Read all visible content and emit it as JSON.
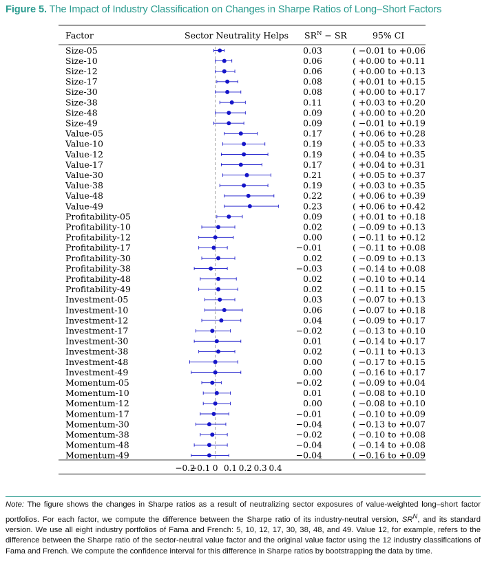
{
  "figure": {
    "label": "Figure 5.",
    "title": "The Impact of Industry Classification on Changes in Sharpe Ratios of Long–Short Factors"
  },
  "note": {
    "lead": "Note:",
    "part1": " The figure shows the changes in Sharpe ratios as a result of neutralizing sector exposures of value-weighted long–short factor portfolios. For each factor, we compute the difference between the Sharpe ratio of its industry-neutral version, ",
    "sym": "SR",
    "sym_sup": "N",
    "part2": ", and its standard version. We use all eight industry portfolios of Fama and French: 5, 10, 12, 17, 30, 38, 48, and 49. Value 12, for example, refers to the difference between the Sharpe ratio of the sector-neutral value factor and the original value factor using the 12 industry classifications of Fama and French. We compute the confidence interval for this difference in Sharpe ratios by bootstrapping the data by time."
  },
  "colors": {
    "accent": "#2a9b8f",
    "point": "#1515c8",
    "ci": "#1a1acb"
  },
  "chart_data": {
    "type": "scatter",
    "orientation": "horizontal-forest",
    "columns": {
      "factor": "Factor",
      "plot": "Sector Neutrality Helps",
      "diff_main": "SR",
      "diff_sup": "N",
      "diff_tail": " − SR",
      "ci": "95% CI"
    },
    "xlim": [
      -0.2,
      0.4
    ],
    "xticks": [
      "−0.2",
      "−0.1",
      "0",
      "0.1",
      "0.2",
      "0.3",
      "0.4"
    ],
    "xtick_values": [
      -0.2,
      -0.1,
      0,
      0.1,
      0.2,
      0.3,
      0.4
    ],
    "reference_line": 0,
    "rows": [
      {
        "factor": "Size-05",
        "diff": 0.03,
        "lo": -0.01,
        "hi": 0.06,
        "diff_label": "0.03",
        "ci_label": "( −0.01 to +0.06)"
      },
      {
        "factor": "Size-10",
        "diff": 0.06,
        "lo": 0.0,
        "hi": 0.11,
        "diff_label": "0.06",
        "ci_label": "( +0.00 to +0.11)"
      },
      {
        "factor": "Size-12",
        "diff": 0.06,
        "lo": 0.0,
        "hi": 0.13,
        "diff_label": "0.06",
        "ci_label": "( +0.00 to +0.13)"
      },
      {
        "factor": "Size-17",
        "diff": 0.08,
        "lo": 0.01,
        "hi": 0.15,
        "diff_label": "0.08",
        "ci_label": "( +0.01 to +0.15)"
      },
      {
        "factor": "Size-30",
        "diff": 0.08,
        "lo": 0.0,
        "hi": 0.17,
        "diff_label": "0.08",
        "ci_label": "( +0.00 to +0.17)"
      },
      {
        "factor": "Size-38",
        "diff": 0.11,
        "lo": 0.03,
        "hi": 0.2,
        "diff_label": "0.11",
        "ci_label": "( +0.03 to +0.20)"
      },
      {
        "factor": "Size-48",
        "diff": 0.09,
        "lo": 0.0,
        "hi": 0.2,
        "diff_label": "0.09",
        "ci_label": "( +0.00 to +0.20)"
      },
      {
        "factor": "Size-49",
        "diff": 0.09,
        "lo": -0.01,
        "hi": 0.19,
        "diff_label": "0.09",
        "ci_label": "( −0.01 to +0.19)"
      },
      {
        "factor": "Value-05",
        "diff": 0.17,
        "lo": 0.06,
        "hi": 0.28,
        "diff_label": "0.17",
        "ci_label": "( +0.06 to +0.28)"
      },
      {
        "factor": "Value-10",
        "diff": 0.19,
        "lo": 0.05,
        "hi": 0.33,
        "diff_label": "0.19",
        "ci_label": "( +0.05 to +0.33)"
      },
      {
        "factor": "Value-12",
        "diff": 0.19,
        "lo": 0.04,
        "hi": 0.35,
        "diff_label": "0.19",
        "ci_label": "( +0.04 to +0.35)"
      },
      {
        "factor": "Value-17",
        "diff": 0.17,
        "lo": 0.04,
        "hi": 0.31,
        "diff_label": "0.17",
        "ci_label": "( +0.04 to +0.31)"
      },
      {
        "factor": "Value-30",
        "diff": 0.21,
        "lo": 0.05,
        "hi": 0.37,
        "diff_label": "0.21",
        "ci_label": "( +0.05 to +0.37)"
      },
      {
        "factor": "Value-38",
        "diff": 0.19,
        "lo": 0.03,
        "hi": 0.35,
        "diff_label": "0.19",
        "ci_label": "( +0.03 to +0.35)"
      },
      {
        "factor": "Value-48",
        "diff": 0.22,
        "lo": 0.06,
        "hi": 0.39,
        "diff_label": "0.22",
        "ci_label": "( +0.06 to +0.39)"
      },
      {
        "factor": "Value-49",
        "diff": 0.23,
        "lo": 0.06,
        "hi": 0.42,
        "diff_label": "0.23",
        "ci_label": "( +0.06 to +0.42)"
      },
      {
        "factor": "Profitability-05",
        "diff": 0.09,
        "lo": 0.01,
        "hi": 0.18,
        "diff_label": "0.09",
        "ci_label": "( +0.01 to +0.18)"
      },
      {
        "factor": "Profitability-10",
        "diff": 0.02,
        "lo": -0.09,
        "hi": 0.13,
        "diff_label": "0.02",
        "ci_label": "( −0.09 to +0.13)"
      },
      {
        "factor": "Profitability-12",
        "diff": 0.0,
        "lo": -0.11,
        "hi": 0.12,
        "diff_label": "0.00",
        "ci_label": "( −0.11 to +0.12)"
      },
      {
        "factor": "Profitability-17",
        "diff": -0.01,
        "lo": -0.11,
        "hi": 0.08,
        "diff_label": "−0.01",
        "ci_label": "( −0.11 to +0.08)"
      },
      {
        "factor": "Profitability-30",
        "diff": 0.02,
        "lo": -0.09,
        "hi": 0.13,
        "diff_label": "0.02",
        "ci_label": "( −0.09 to +0.13)"
      },
      {
        "factor": "Profitability-38",
        "diff": -0.03,
        "lo": -0.14,
        "hi": 0.08,
        "diff_label": "−0.03",
        "ci_label": "( −0.14 to +0.08)"
      },
      {
        "factor": "Profitability-48",
        "diff": 0.02,
        "lo": -0.1,
        "hi": 0.14,
        "diff_label": "0.02",
        "ci_label": "( −0.10 to +0.14)"
      },
      {
        "factor": "Profitability-49",
        "diff": 0.02,
        "lo": -0.11,
        "hi": 0.15,
        "diff_label": "0.02",
        "ci_label": "( −0.11 to +0.15)"
      },
      {
        "factor": "Investment-05",
        "diff": 0.03,
        "lo": -0.07,
        "hi": 0.13,
        "diff_label": "0.03",
        "ci_label": "( −0.07 to +0.13)"
      },
      {
        "factor": "Investment-10",
        "diff": 0.06,
        "lo": -0.07,
        "hi": 0.18,
        "diff_label": "0.06",
        "ci_label": "( −0.07 to +0.18)"
      },
      {
        "factor": "Investment-12",
        "diff": 0.04,
        "lo": -0.09,
        "hi": 0.17,
        "diff_label": "0.04",
        "ci_label": "( −0.09 to +0.17)"
      },
      {
        "factor": "Investment-17",
        "diff": -0.02,
        "lo": -0.13,
        "hi": 0.1,
        "diff_label": "−0.02",
        "ci_label": "( −0.13 to +0.10)"
      },
      {
        "factor": "Investment-30",
        "diff": 0.01,
        "lo": -0.14,
        "hi": 0.17,
        "diff_label": "0.01",
        "ci_label": "( −0.14 to +0.17)"
      },
      {
        "factor": "Investment-38",
        "diff": 0.02,
        "lo": -0.11,
        "hi": 0.13,
        "diff_label": "0.02",
        "ci_label": "( −0.11 to +0.13)"
      },
      {
        "factor": "Investment-48",
        "diff": 0.0,
        "lo": -0.17,
        "hi": 0.15,
        "diff_label": "0.00",
        "ci_label": "( −0.17 to +0.15)"
      },
      {
        "factor": "Investment-49",
        "diff": 0.0,
        "lo": -0.16,
        "hi": 0.17,
        "diff_label": "0.00",
        "ci_label": "( −0.16 to +0.17)"
      },
      {
        "factor": "Momentum-05",
        "diff": -0.02,
        "lo": -0.09,
        "hi": 0.04,
        "diff_label": "−0.02",
        "ci_label": "( −0.09 to +0.04)"
      },
      {
        "factor": "Momentum-10",
        "diff": 0.01,
        "lo": -0.08,
        "hi": 0.1,
        "diff_label": "0.01",
        "ci_label": "( −0.08 to +0.10)"
      },
      {
        "factor": "Momentum-12",
        "diff": 0.0,
        "lo": -0.08,
        "hi": 0.1,
        "diff_label": "0.00",
        "ci_label": "( −0.08 to +0.10)"
      },
      {
        "factor": "Momentum-17",
        "diff": -0.01,
        "lo": -0.1,
        "hi": 0.09,
        "diff_label": "−0.01",
        "ci_label": "( −0.10 to +0.09)"
      },
      {
        "factor": "Momentum-30",
        "diff": -0.04,
        "lo": -0.13,
        "hi": 0.07,
        "diff_label": "−0.04",
        "ci_label": "( −0.13 to +0.07)"
      },
      {
        "factor": "Momentum-38",
        "diff": -0.02,
        "lo": -0.1,
        "hi": 0.08,
        "diff_label": "−0.02",
        "ci_label": "( −0.10 to +0.08)"
      },
      {
        "factor": "Momentum-48",
        "diff": -0.04,
        "lo": -0.14,
        "hi": 0.08,
        "diff_label": "−0.04",
        "ci_label": "( −0.14 to +0.08)"
      },
      {
        "factor": "Momentum-49",
        "diff": -0.04,
        "lo": -0.16,
        "hi": 0.09,
        "diff_label": "−0.04",
        "ci_label": "( −0.16 to +0.09)"
      }
    ]
  }
}
